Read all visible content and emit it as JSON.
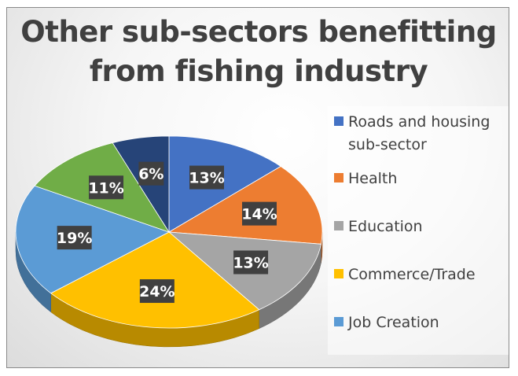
{
  "chart_data": {
    "type": "pie",
    "title": "Other sub-sectors benefitting from fishing industry",
    "categories": [
      "Roads and housing sub-sector",
      "Health",
      "Education",
      "Commerce/Trade",
      "Job Creation",
      "",
      ""
    ],
    "values": [
      13,
      14,
      13,
      24,
      19,
      11,
      6
    ],
    "labels": [
      "13%",
      "14%",
      "13%",
      "24%",
      "19%",
      "11%",
      "6%"
    ],
    "colors": [
      "#4472c4",
      "#ed7d31",
      "#a5a5a5",
      "#ffc000",
      "#5b9bd5",
      "#70ad47",
      "#264478"
    ],
    "legend": {
      "position": "right",
      "entries": [
        {
          "label": "Roads and housing sub-sector",
          "color": "#4472c4"
        },
        {
          "label": "Health",
          "color": "#ed7d31"
        },
        {
          "label": "Education",
          "color": "#a5a5a5"
        },
        {
          "label": "Commerce/Trade",
          "color": "#ffc000"
        },
        {
          "label": "Job Creation",
          "color": "#5b9bd5"
        }
      ]
    },
    "style": "3d-pie"
  }
}
